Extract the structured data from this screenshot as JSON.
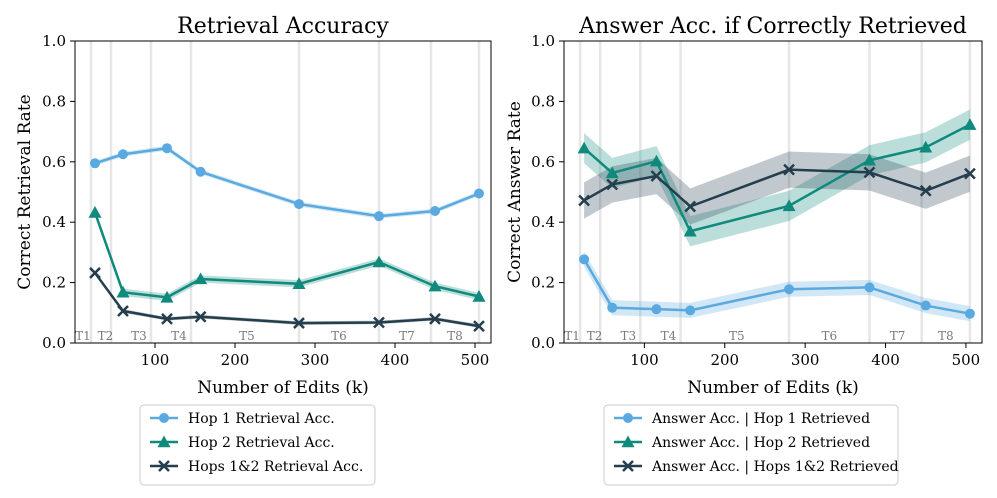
{
  "chart_data": [
    {
      "type": "line",
      "title": "Retrieval Accuracy",
      "xlabel": "Number of Edits (k)",
      "ylabel": "Correct Retrieval Rate",
      "xlim": [
        0,
        520
      ],
      "ylim": [
        0.0,
        1.0
      ],
      "xticks": [
        "100",
        "200",
        "300",
        "400",
        "500"
      ],
      "yticks": [
        "0.0",
        "0.2",
        "0.4",
        "0.6",
        "0.8",
        "1.0"
      ],
      "task_boundaries": [
        20,
        45,
        95,
        145,
        280,
        380,
        445,
        505
      ],
      "task_labels": [
        {
          "label": "T1",
          "x": 10
        },
        {
          "label": "T2",
          "x": 38
        },
        {
          "label": "T3",
          "x": 80
        },
        {
          "label": "T4",
          "x": 130
        },
        {
          "label": "T5",
          "x": 215
        },
        {
          "label": "T6",
          "x": 330
        },
        {
          "label": "T7",
          "x": 415
        },
        {
          "label": "T8",
          "x": 475
        }
      ],
      "x": [
        25,
        60,
        115,
        157,
        280,
        380,
        450,
        505
      ],
      "series": [
        {
          "name": "Hop 1 Retrieval Acc.",
          "color": "#5aa9e0",
          "marker": "circle",
          "values": [
            0.595,
            0.625,
            0.645,
            0.567,
            0.46,
            0.42,
            0.437,
            0.495
          ],
          "band": 0.008
        },
        {
          "name": "Hop 2 Retrieval Acc.",
          "color": "#0f8a7c",
          "marker": "triangle",
          "values": [
            0.432,
            0.168,
            0.151,
            0.212,
            0.196,
            0.268,
            0.188,
            0.154
          ],
          "band": 0.012
        },
        {
          "name": "Hops 1&2 Retrieval Acc.",
          "color": "#243e4e",
          "marker": "x",
          "values": [
            0.232,
            0.106,
            0.08,
            0.087,
            0.066,
            0.068,
            0.08,
            0.056
          ],
          "band": 0.006
        }
      ],
      "legend_placement": "below"
    },
    {
      "type": "line",
      "title": "Answer Acc. if Correctly Retrieved",
      "xlabel": "Number of Edits (k)",
      "ylabel": "Correct Answer Rate",
      "xlim": [
        0,
        520
      ],
      "ylim": [
        0.0,
        1.0
      ],
      "xticks": [
        "100",
        "200",
        "300",
        "400",
        "500"
      ],
      "yticks": [
        "0.0",
        "0.2",
        "0.4",
        "0.6",
        "0.8",
        "1.0"
      ],
      "task_boundaries": [
        20,
        45,
        95,
        145,
        280,
        380,
        445,
        505
      ],
      "task_labels": [
        {
          "label": "T1",
          "x": 10
        },
        {
          "label": "T2",
          "x": 38
        },
        {
          "label": "T3",
          "x": 80
        },
        {
          "label": "T4",
          "x": 130
        },
        {
          "label": "T5",
          "x": 215
        },
        {
          "label": "T6",
          "x": 330
        },
        {
          "label": "T7",
          "x": 415
        },
        {
          "label": "T8",
          "x": 475
        }
      ],
      "x": [
        25,
        60,
        115,
        157,
        280,
        380,
        450,
        505
      ],
      "series": [
        {
          "name": "Answer Acc. | Hop 1 Retrieved",
          "color": "#5aa9e0",
          "marker": "circle",
          "values": [
            0.277,
            0.117,
            0.112,
            0.108,
            0.178,
            0.184,
            0.124,
            0.097
          ],
          "band": 0.025
        },
        {
          "name": "Answer Acc. | Hop 2 Retrieved",
          "color": "#0f8a7c",
          "marker": "triangle",
          "values": [
            0.645,
            0.563,
            0.602,
            0.37,
            0.454,
            0.605,
            0.648,
            0.723
          ],
          "band": 0.05
        },
        {
          "name": "Answer Acc. | Hops 1&2 Retrieved",
          "color": "#243e4e",
          "marker": "x",
          "values": [
            0.472,
            0.525,
            0.553,
            0.452,
            0.574,
            0.565,
            0.504,
            0.561
          ],
          "band": 0.06
        }
      ],
      "legend_placement": "below"
    }
  ]
}
